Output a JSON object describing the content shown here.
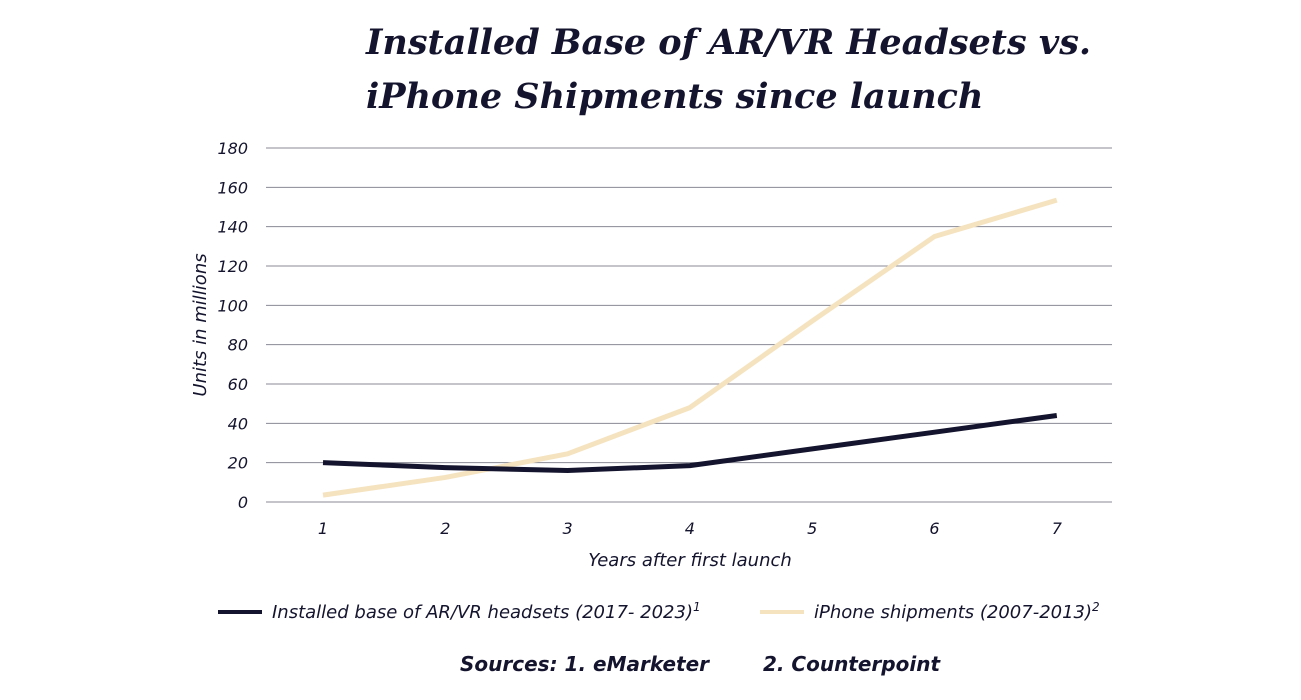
{
  "chart_data": {
    "type": "line",
    "title_line1": "Installed Base of AR/VR Headsets vs.",
    "title_line2": "iPhone Shipments since launch",
    "xlabel": "Years after first launch",
    "ylabel": "Units in millions",
    "categories": [
      1,
      2,
      3,
      4,
      5,
      6,
      7
    ],
    "ylim": [
      0,
      180
    ],
    "yticks": [
      0,
      20,
      40,
      60,
      80,
      100,
      120,
      140,
      160,
      180
    ],
    "grid": true,
    "legend_position": "bottom",
    "series": [
      {
        "name": "Installed base of AR/VR headsets (2017- 2023)",
        "footnote": "1",
        "color": "#14142e",
        "values": [
          20,
          17.5,
          16,
          18.5,
          27,
          35.5,
          44
        ]
      },
      {
        "name": "iPhone shipments (2007-2013)",
        "footnote": "2",
        "color": "#f5e3c0",
        "values": [
          3.5,
          12.5,
          24.5,
          48,
          92,
          135,
          153.5
        ]
      }
    ]
  },
  "sources": {
    "label": "Sources:",
    "source1": "1. eMarketer",
    "source2": "2. Counterpoint"
  }
}
